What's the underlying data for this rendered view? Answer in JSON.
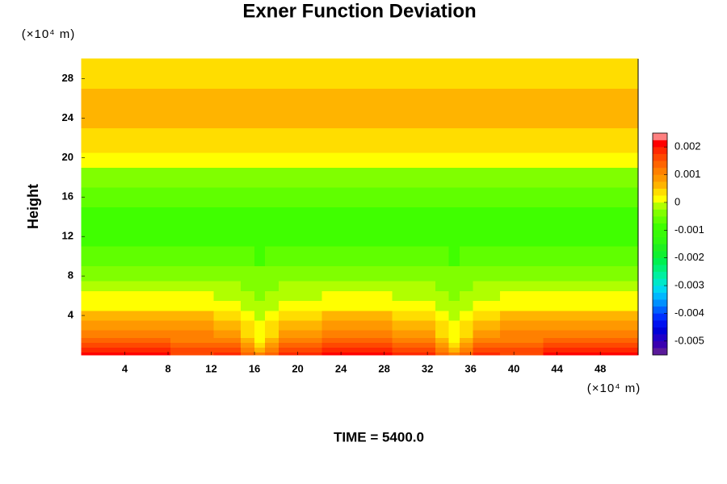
{
  "chart_data": {
    "type": "contour",
    "title": "Exner Function Deviation",
    "ylabel": "Height",
    "xunit": "(×10⁴ m)",
    "yunit": "(×10⁴ m)",
    "footer": "TIME = 5400.0",
    "xlim": [
      0,
      51.5
    ],
    "ylim": [
      0,
      30
    ],
    "xticks": [
      4,
      8,
      12,
      16,
      20,
      24,
      28,
      32,
      36,
      40,
      44,
      48
    ],
    "yticks": [
      4,
      8,
      12,
      16,
      20,
      24,
      28
    ],
    "x": [
      0,
      6,
      10.5,
      14,
      15.5,
      16.5,
      17.5,
      19,
      25.5,
      32,
      33.5,
      34.5,
      35.5,
      37,
      40.5,
      45,
      51.5
    ],
    "y": [
      0,
      0.5,
      1,
      1.5,
      2,
      3,
      4,
      5,
      6,
      7,
      8,
      10,
      12,
      14,
      16,
      18,
      20,
      21,
      22,
      24,
      26,
      28,
      30
    ],
    "z": [
      [
        0.002,
        0.002,
        0.0017,
        0.0018,
        0.0014,
        0.001,
        0.0014,
        0.0018,
        0.002,
        0.0018,
        0.0014,
        0.001,
        0.0014,
        0.0018,
        0.0017,
        0.002,
        0.002
      ],
      [
        0.0018,
        0.0018,
        0.0015,
        0.0016,
        0.0011,
        0.0006,
        0.0011,
        0.0016,
        0.0018,
        0.0016,
        0.0011,
        0.0006,
        0.0011,
        0.0016,
        0.0015,
        0.0018,
        0.0018
      ],
      [
        0.0015,
        0.0015,
        0.0013,
        0.0013,
        0.0008,
        0.0003,
        0.0008,
        0.0013,
        0.0015,
        0.0013,
        0.0008,
        0.0003,
        0.0008,
        0.0013,
        0.0013,
        0.0015,
        0.0015
      ],
      [
        0.0013,
        0.0013,
        0.0012,
        0.0011,
        0.0006,
        0.0001,
        0.0006,
        0.0011,
        0.0013,
        0.0011,
        0.0006,
        0.0001,
        0.0006,
        0.0011,
        0.0012,
        0.0013,
        0.0013
      ],
      [
        0.0011,
        0.0011,
        0.0011,
        0.0009,
        0.0004,
        0,
        0.0004,
        0.0009,
        0.0011,
        0.0009,
        0.0004,
        0,
        0.0004,
        0.0009,
        0.0011,
        0.0011,
        0.0011
      ],
      [
        0.0008,
        0.0008,
        0.0008,
        0.0007,
        0.0003,
        0,
        0.0003,
        0.0007,
        0.0008,
        0.0007,
        0.0003,
        0,
        0.0003,
        0.0007,
        0.0008,
        0.0008,
        0.0008
      ],
      [
        0.0005,
        0.0005,
        0.0005,
        0.0004,
        0.0001,
        -0.0001,
        0.0001,
        0.0004,
        0.0005,
        0.0004,
        0.0001,
        -0.0001,
        0.0001,
        0.0004,
        0.0005,
        0.0005,
        0.0005
      ],
      [
        0.0002,
        0.0002,
        0.0002,
        0.0001,
        -0.0001,
        -0.0002,
        -0.0001,
        0.0001,
        0.0002,
        0.0001,
        -0.0001,
        -0.0002,
        -0.0001,
        0.0001,
        0.0002,
        0.0002,
        0.0002
      ],
      [
        0,
        0,
        0,
        -0.0001,
        -0.0002,
        -0.0003,
        -0.0002,
        -0.0001,
        0,
        -0.0001,
        -0.0002,
        -0.0003,
        -0.0002,
        -0.0001,
        0,
        0,
        0
      ],
      [
        -0.0002,
        -0.0002,
        -0.0002,
        -0.0002,
        -0.0003,
        -0.0004,
        -0.0003,
        -0.0002,
        -0.0002,
        -0.0002,
        -0.0003,
        -0.0004,
        -0.0003,
        -0.0002,
        -0.0002,
        -0.0002,
        -0.0002
      ],
      [
        -0.0004,
        -0.0004,
        -0.0004,
        -0.0004,
        -0.0005,
        -0.0005,
        -0.0005,
        -0.0004,
        -0.0004,
        -0.0004,
        -0.0005,
        -0.0005,
        -0.0005,
        -0.0004,
        -0.0004,
        -0.0004,
        -0.0004
      ],
      [
        -0.0007,
        -0.0007,
        -0.0007,
        -0.0007,
        -0.0007,
        -0.0008,
        -0.0007,
        -0.0007,
        -0.0007,
        -0.0007,
        -0.0007,
        -0.0008,
        -0.0007,
        -0.0007,
        -0.0007,
        -0.0007,
        -0.0007
      ],
      [
        -0.0009,
        -0.0009,
        -0.0009,
        -0.0009,
        -0.001,
        -0.001,
        -0.001,
        -0.0009,
        -0.0009,
        -0.0009,
        -0.001,
        -0.001,
        -0.001,
        -0.0009,
        -0.0009,
        -0.0009,
        -0.0009
      ],
      [
        -0.0009,
        -0.0009,
        -0.0009,
        -0.0009,
        -0.0009,
        -0.0009,
        -0.0009,
        -0.0009,
        -0.0009,
        -0.0009,
        -0.0009,
        -0.0009,
        -0.0009,
        -0.0009,
        -0.0009,
        -0.0009,
        -0.0009
      ],
      [
        -0.0006,
        -0.0006,
        -0.0006,
        -0.0006,
        -0.0006,
        -0.0006,
        -0.0006,
        -0.0006,
        -0.0006,
        -0.0006,
        -0.0006,
        -0.0006,
        -0.0006,
        -0.0006,
        -0.0006,
        -0.0006,
        -0.0006
      ],
      [
        -0.0003,
        -0.0003,
        -0.0003,
        -0.0003,
        -0.0003,
        -0.0003,
        -0.0003,
        -0.0003,
        -0.0003,
        -0.0003,
        -0.0003,
        -0.0003,
        -0.0003,
        -0.0003,
        -0.0003,
        -0.0003,
        -0.0003
      ],
      [
        0.0001,
        0.0001,
        0.0001,
        0.0001,
        0.0001,
        0.0001,
        0.0001,
        0.0001,
        0.0001,
        0.0001,
        0.0001,
        0.0001,
        0.0001,
        0.0001,
        0.0001,
        0.0001,
        0.0001
      ],
      [
        0.0003,
        0.0003,
        0.0003,
        0.0003,
        0.0003,
        0.0003,
        0.0003,
        0.0003,
        0.0003,
        0.0003,
        0.0003,
        0.0003,
        0.0003,
        0.0003,
        0.0003,
        0.0003,
        0.0003
      ],
      [
        0.0004,
        0.0004,
        0.0004,
        0.0004,
        0.0004,
        0.0004,
        0.0004,
        0.0004,
        0.0004,
        0.0004,
        0.0004,
        0.0004,
        0.0004,
        0.0004,
        0.0004,
        0.0004,
        0.0004
      ],
      [
        0.0006,
        0.0006,
        0.0006,
        0.0006,
        0.0006,
        0.0006,
        0.0006,
        0.0006,
        0.0006,
        0.0006,
        0.0006,
        0.0006,
        0.0006,
        0.0006,
        0.0006,
        0.0006,
        0.0006
      ],
      [
        0.0006,
        0.0006,
        0.0006,
        0.0006,
        0.0006,
        0.0006,
        0.0006,
        0.0006,
        0.0006,
        0.0006,
        0.0006,
        0.0006,
        0.0006,
        0.0006,
        0.0006,
        0.0006,
        0.0006
      ],
      [
        0.0003,
        0.0003,
        0.0003,
        0.0003,
        0.0003,
        0.0003,
        0.0003,
        0.0003,
        0.0003,
        0.0003,
        0.0003,
        0.0003,
        0.0003,
        0.0003,
        0.0003,
        0.0003,
        0.0003
      ],
      [
        0.0003,
        0.0003,
        0.0003,
        0.0003,
        0.0003,
        0.0003,
        0.0003,
        0.0003,
        0.0003,
        0.0003,
        0.0003,
        0.0003,
        0.0003,
        0.0003,
        0.0003,
        0.0003,
        0.0003
      ]
    ],
    "clim": [
      -0.0055,
      0.0025
    ],
    "cticks": [
      0.002,
      0.001,
      0,
      -0.001,
      -0.002,
      -0.003,
      -0.004,
      -0.005
    ],
    "colors": [
      "#5a1a9a",
      "#3a00b0",
      "#2000c8",
      "#0000d8",
      "#0010f0",
      "#0030ff",
      "#0060ff",
      "#0090ff",
      "#00b8ff",
      "#00d8f0",
      "#00e8c8",
      "#00f0a0",
      "#00f078",
      "#00f050",
      "#10f030",
      "#20f020",
      "#30f810",
      "#38fa08",
      "#40ff00",
      "#60ff00",
      "#80ff00",
      "#b0ff00",
      "#ffff00",
      "#ffdd00",
      "#ffb400",
      "#ff9800",
      "#ff8000",
      "#ff6400",
      "#ff4800",
      "#ff2800",
      "#ff0000",
      "#ff8080"
    ]
  }
}
